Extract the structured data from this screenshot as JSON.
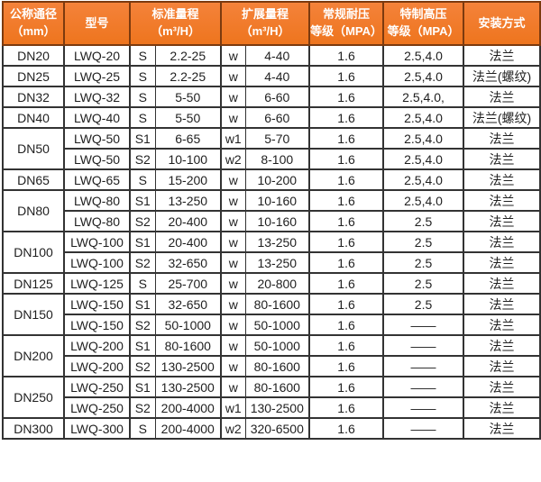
{
  "colors": {
    "header_bg": "#ee751e",
    "header_bg_light": "#f4823a",
    "header_border": "#7c3a0e",
    "header_text": "#ffffff",
    "grid_border": "#333333",
    "body_text": "#1f1f1f",
    "body_bg": "#ffffff"
  },
  "table": {
    "header": {
      "diameter": "公称通径\n（mm）",
      "model": "型号",
      "standard_range": "标准量程\n（m³/H）",
      "extended_range": "扩展量程\n（m³/H）",
      "normal_pressure": "常规耐压\n等级（MPA）",
      "high_pressure": "特制高压\n等级（MPA）",
      "installation": "安装方式"
    },
    "rows": [
      {
        "dn": "DN20",
        "span": 1,
        "model": "LWQ-20",
        "s": "S",
        "std": "2.2-25",
        "w": "w",
        "ext": "4-40",
        "normal": "1.6",
        "high": "2.5,4.0",
        "install": "法兰"
      },
      {
        "dn": "DN25",
        "span": 1,
        "model": "LWQ-25",
        "s": "S",
        "std": "2.2-25",
        "w": "w",
        "ext": "4-40",
        "normal": "1.6",
        "high": "2.5,4.0",
        "install": "法兰(螺纹)"
      },
      {
        "dn": "DN32",
        "span": 1,
        "model": "LWQ-32",
        "s": "S",
        "std": "5-50",
        "w": "w",
        "ext": "6-60",
        "normal": "1.6",
        "high": "2.5,4.0,",
        "install": "法兰"
      },
      {
        "dn": "DN40",
        "span": 1,
        "model": "LWQ-40",
        "s": "S",
        "std": "5-50",
        "w": "w",
        "ext": "6-60",
        "normal": "1.6",
        "high": "2.5,4.0",
        "install": "法兰(螺纹)"
      },
      {
        "dn": "DN50",
        "span": 2,
        "model": "LWQ-50",
        "s": "S1",
        "std": "6-65",
        "w": "w1",
        "ext": "5-70",
        "normal": "1.6",
        "high": "2.5,4.0",
        "install": "法兰"
      },
      {
        "model": "LWQ-50",
        "s": "S2",
        "std": "10-100",
        "w": "w2",
        "ext": "8-100",
        "normal": "1.6",
        "high": "2.5,4.0",
        "install": "法兰"
      },
      {
        "dn": "DN65",
        "span": 1,
        "model": "LWQ-65",
        "s": "S",
        "std": "15-200",
        "w": "w",
        "ext": "10-200",
        "normal": "1.6",
        "high": "2.5,4.0",
        "install": "法兰"
      },
      {
        "dn": "DN80",
        "span": 2,
        "model": "LWQ-80",
        "s": "S1",
        "std": "13-250",
        "w": "w",
        "ext": "10-160",
        "normal": "1.6",
        "high": "2.5,4.0",
        "install": "法兰"
      },
      {
        "model": "LWQ-80",
        "s": "S2",
        "std": "20-400",
        "w": "w",
        "ext": "10-160",
        "normal": "1.6",
        "high": "2.5",
        "install": "法兰"
      },
      {
        "dn": "DN100",
        "span": 2,
        "model": "LWQ-100",
        "s": "S1",
        "std": "20-400",
        "w": "w",
        "ext": "13-250",
        "normal": "1.6",
        "high": "2.5",
        "install": "法兰"
      },
      {
        "model": "LWQ-100",
        "s": "S2",
        "std": "32-650",
        "w": "w",
        "ext": "13-250",
        "normal": "1.6",
        "high": "2.5",
        "install": "法兰"
      },
      {
        "dn": "DN125",
        "span": 1,
        "model": "LWQ-125",
        "s": "S",
        "std": "25-700",
        "w": "w",
        "ext": "20-800",
        "normal": "1.6",
        "high": "2.5",
        "install": "法兰"
      },
      {
        "dn": "DN150",
        "span": 2,
        "model": "LWQ-150",
        "s": "S1",
        "std": "32-650",
        "w": "w",
        "ext": "80-1600",
        "normal": "1.6",
        "high": "2.5",
        "install": "法兰"
      },
      {
        "model": "LWQ-150",
        "s": "S2",
        "std": "50-1000",
        "w": "w",
        "ext": "50-1000",
        "normal": "1.6",
        "high": "——",
        "install": "法兰"
      },
      {
        "dn": "DN200",
        "span": 2,
        "model": "LWQ-200",
        "s": "S1",
        "std": "80-1600",
        "w": "w",
        "ext": "50-1000",
        "normal": "1.6",
        "high": "——",
        "install": "法兰"
      },
      {
        "model": "LWQ-200",
        "s": "S2",
        "std": "130-2500",
        "w": "w",
        "ext": "80-1600",
        "normal": "1.6",
        "high": "——",
        "install": "法兰"
      },
      {
        "dn": "DN250",
        "span": 2,
        "model": "LWQ-250",
        "s": "S1",
        "std": "130-2500",
        "w": "w",
        "ext": "80-1600",
        "normal": "1.6",
        "high": "——",
        "install": "法兰"
      },
      {
        "model": "LWQ-250",
        "s": "S2",
        "std": "200-4000",
        "w": "w1",
        "ext": "130-2500",
        "normal": "1.6",
        "high": "——",
        "install": "法兰"
      },
      {
        "dn": "DN300",
        "span": 1,
        "model": "LWQ-300",
        "s": "S",
        "std": "200-4000",
        "w": "w2",
        "ext": "320-6500",
        "normal": "1.6",
        "high": "——",
        "install": "法兰"
      }
    ]
  }
}
